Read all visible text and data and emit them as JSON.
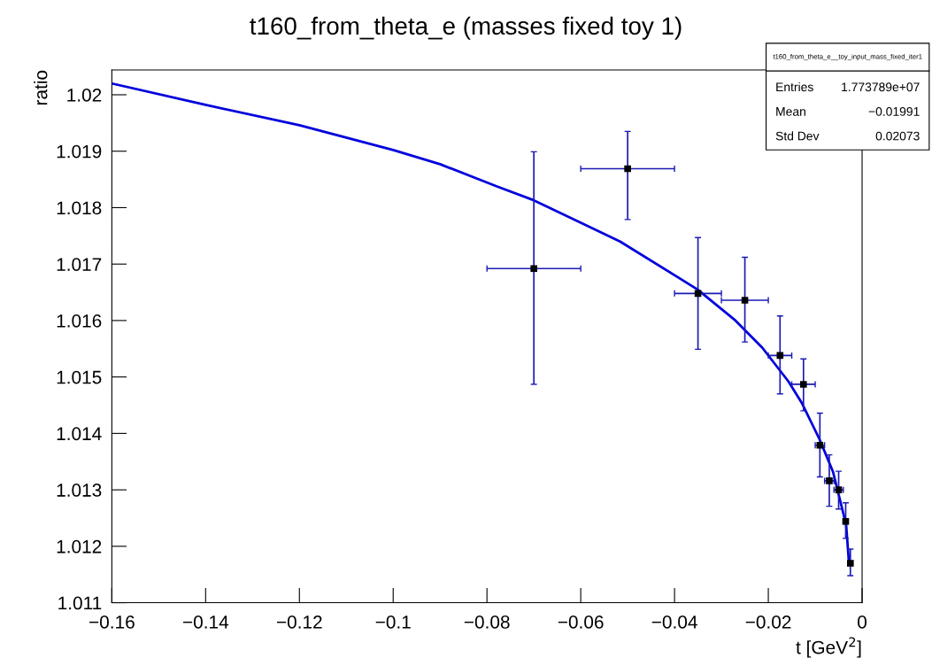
{
  "chart_data": {
    "type": "scatter",
    "title": "t160_from_theta_e (masses fixed toy 1)",
    "xlabel": "t [GeV$^{2}$]",
    "ylabel": "ratio",
    "xlim": [
      -0.16,
      0
    ],
    "ylim": [
      1.011,
      1.02044
    ],
    "xticks": [
      {
        "value": -0.16,
        "label": "−0.16"
      },
      {
        "value": -0.14,
        "label": "−0.14"
      },
      {
        "value": -0.12,
        "label": "−0.12"
      },
      {
        "value": -0.1,
        "label": "−0.1"
      },
      {
        "value": -0.08,
        "label": "−0.08"
      },
      {
        "value": -0.06,
        "label": "−0.06"
      },
      {
        "value": -0.04,
        "label": "−0.04"
      },
      {
        "value": -0.02,
        "label": "−0.02"
      },
      0
    ],
    "yticks": [
      1.011,
      1.012,
      1.013,
      1.014,
      1.015,
      1.016,
      1.017,
      1.018,
      1.019,
      1.02
    ],
    "grid": false,
    "series": [
      {
        "color": "#1a1ab4",
        "marker": "square",
        "colors": [
          "#000000",
          "#000000",
          "#000000",
          "#000000",
          "#000000",
          "#000000",
          "#000000",
          "#000000",
          "#000000",
          "#000000",
          "#000000"
        ],
        "x": [
          -0.07,
          -0.05,
          -0.035,
          -0.025,
          -0.0175,
          -0.0125,
          -0.009,
          -0.007,
          -0.005,
          -0.0035,
          -0.0025
        ],
        "values": [
          1.01692,
          1.01869,
          1.01648,
          1.01636,
          1.01538,
          1.01487,
          1.01379,
          1.01316,
          1.013,
          1.01244,
          1.0117
        ],
        "errors": [
          [
            1.01487,
            1.01899
          ],
          [
            1.01779,
            1.01935
          ],
          [
            1.01549,
            1.01747
          ],
          [
            1.01562,
            1.01712
          ],
          [
            1.0147,
            1.01608
          ],
          [
            1.0144,
            1.01532
          ],
          [
            1.01323,
            1.01436
          ],
          [
            1.01271,
            1.01362
          ],
          [
            1.01266,
            1.01333
          ],
          [
            1.01214,
            1.01277
          ],
          [
            1.01148,
            1.01195
          ]
        ],
        "xerrors": [
          0.01,
          0.01,
          0.005,
          0.005,
          0.0025,
          0.0025,
          0.001,
          0.001,
          0.001,
          0.0005,
          0.0005
        ]
      },
      {
        "type": "line",
        "color": "#0000dd",
        "x": [
          -0.16,
          -0.14,
          -0.12,
          -0.1,
          -0.09,
          -0.078,
          -0.07,
          -0.0516,
          -0.0351,
          -0.027,
          -0.0213,
          -0.0157,
          -0.0128,
          -0.0091,
          -0.0062,
          -0.0034,
          -0.0028
        ],
        "values": [
          1.0202,
          1.01982,
          1.01946,
          1.01902,
          1.01877,
          1.01838,
          1.01813,
          1.0174,
          1.01655,
          1.016,
          1.01552,
          1.01492,
          1.01453,
          1.0139,
          1.01332,
          1.01238,
          1.0117
        ]
      }
    ],
    "annotations": [
      "t160_from_theta_e__toy_input_mass_fixed_iter1",
      "Entries",
      "1.773789e+07",
      "Mean",
      "−0.01991",
      "Std Dev",
      "0.02073"
    ]
  }
}
